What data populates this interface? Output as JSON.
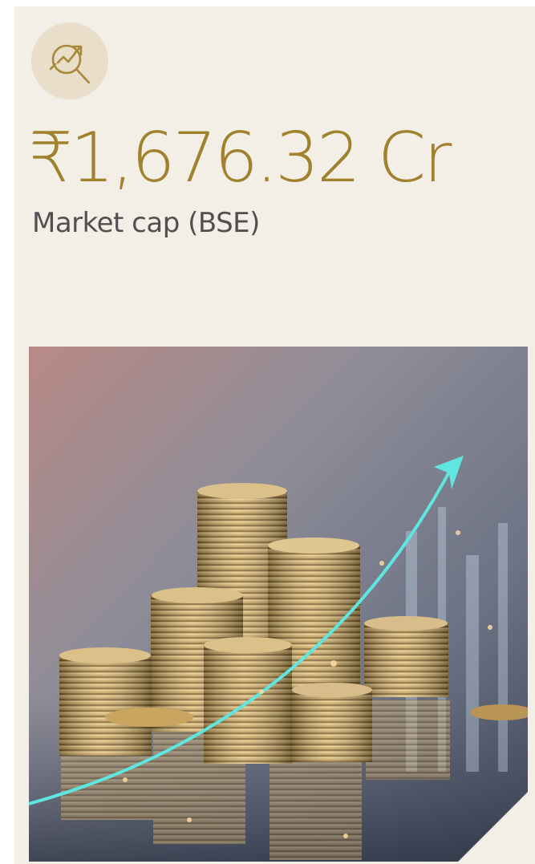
{
  "card": {
    "value": "₹1,676.32 Cr",
    "label": "Market cap (BSE)"
  }
}
